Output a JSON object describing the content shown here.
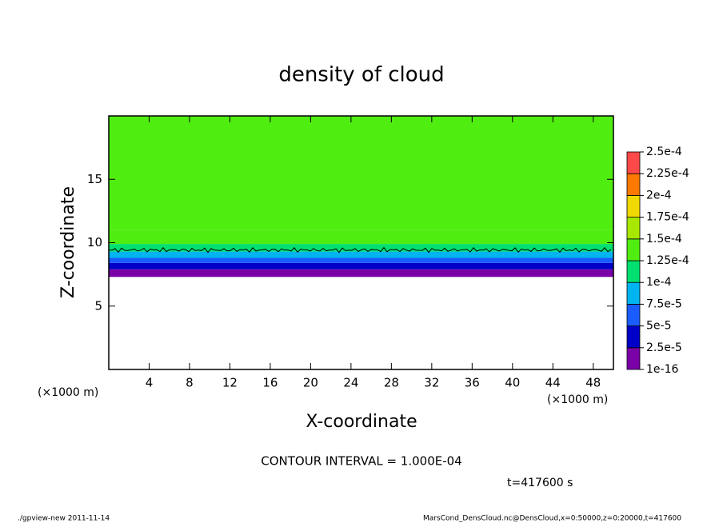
{
  "chart_data": {
    "type": "contour",
    "title": "density of cloud",
    "x_label": "X-coordinate",
    "y_label": "Z-coordinate",
    "x_unit_left": "(×1000 m)",
    "x_unit_right": "(×1000 m)",
    "xlim": [
      0,
      50
    ],
    "xticks": [
      4,
      8,
      12,
      16,
      20,
      24,
      28,
      32,
      36,
      40,
      44,
      48
    ],
    "ylim": [
      0,
      20
    ],
    "yticks": [
      5,
      10,
      15
    ],
    "z_edges": [
      7.3,
      7.9,
      8.4,
      8.8,
      9.3,
      9.9,
      11,
      20
    ],
    "values": [
      1e-05,
      3e-05,
      6e-05,
      9e-05,
      0.00011,
      0.00013,
      0.00013
    ],
    "levels": [
      {
        "value": 1e-16,
        "label": "1e-16"
      },
      {
        "value": 2.5e-05,
        "label": "2.5e-5"
      },
      {
        "value": 5e-05,
        "label": "5e-5"
      },
      {
        "value": 7.5e-05,
        "label": "7.5e-5"
      },
      {
        "value": 0.0001,
        "label": "1e-4"
      },
      {
        "value": 0.000125,
        "label": "1.25e-4"
      },
      {
        "value": 0.00015,
        "label": "1.5e-4"
      },
      {
        "value": 0.000175,
        "label": "1.75e-4"
      },
      {
        "value": 0.0002,
        "label": "2e-4"
      },
      {
        "value": 0.000225,
        "label": "2.25e-4"
      },
      {
        "value": 0.00025,
        "label": "2.5e-4"
      }
    ],
    "colors": [
      "#7a00a8",
      "#0000c8",
      "#1a5cff",
      "#00b4f0",
      "#00e070",
      "#50ee10",
      "#a8e800",
      "#f0d800",
      "#ff7800",
      "#ff4848"
    ],
    "contour_levels": [
      0.0001
    ],
    "contour_interval_text": "CONTOUR INTERVAL = 1.000E-04",
    "time_text": "t=417600 s",
    "footer_left": "./gpview-new  2011-11-14",
    "footer_right": "MarsCond_DensCloud.nc@DensCloud,x=0:50000,z=0:20000,t=417600"
  }
}
